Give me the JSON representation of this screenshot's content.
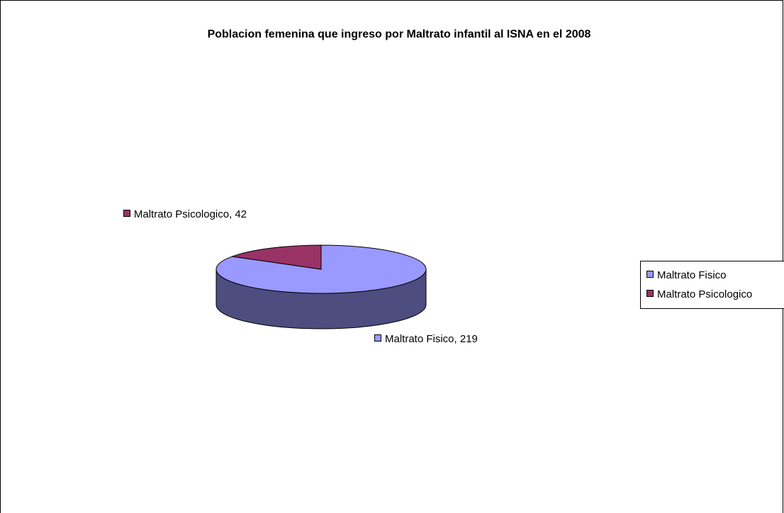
{
  "chart_data": {
    "type": "pie",
    "title": "Poblacion femenina que ingreso por Maltrato infantil al ISNA en el 2008",
    "categories": [
      "Maltrato Fisico",
      "Maltrato Psicologico"
    ],
    "values": [
      219,
      42
    ],
    "value_labels": [
      "Maltrato Fisico, 219",
      "Maltrato Psicologico, 42"
    ],
    "colors": [
      "#9999ff",
      "#993366"
    ],
    "legend": "right"
  }
}
